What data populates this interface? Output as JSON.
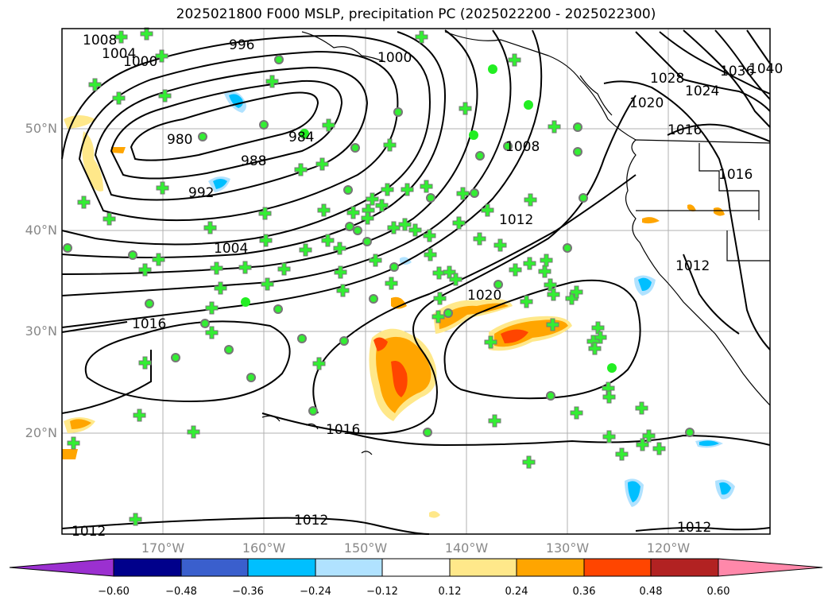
{
  "title": "2025021800 F000 MSLP, precipitation PC (2025022200 - 2025022300)",
  "map": {
    "lat_labels": [
      "50°N",
      "40°N",
      "30°N",
      "20°N"
    ],
    "lon_labels": [
      "170°W",
      "160°W",
      "150°W",
      "140°W",
      "130°W",
      "120°W"
    ],
    "isobar_labels": [
      "1008",
      "1004",
      "1000",
      "996",
      "1000",
      "980",
      "984",
      "988",
      "992",
      "1004",
      "1016",
      "1008",
      "1012",
      "1020",
      "1016",
      "1016",
      "1012",
      "1012",
      "1012",
      "1028",
      "1020",
      "1024",
      "1036",
      "1040",
      "1012",
      "1016"
    ]
  },
  "colorbar": {
    "ticks": [
      "−0.60",
      "−0.48",
      "−0.36",
      "−0.24",
      "−0.12",
      "0.12",
      "0.24",
      "0.36",
      "0.48",
      "0.60"
    ],
    "colors": [
      "#9b30d0",
      "#00008b",
      "#3a5fcd",
      "#00bfff",
      "#b0e2ff",
      "#ffffff",
      "#ffe88a",
      "#ffa500",
      "#ff4500",
      "#b22222",
      "#ff88aa",
      "#ff88aa"
    ]
  }
}
